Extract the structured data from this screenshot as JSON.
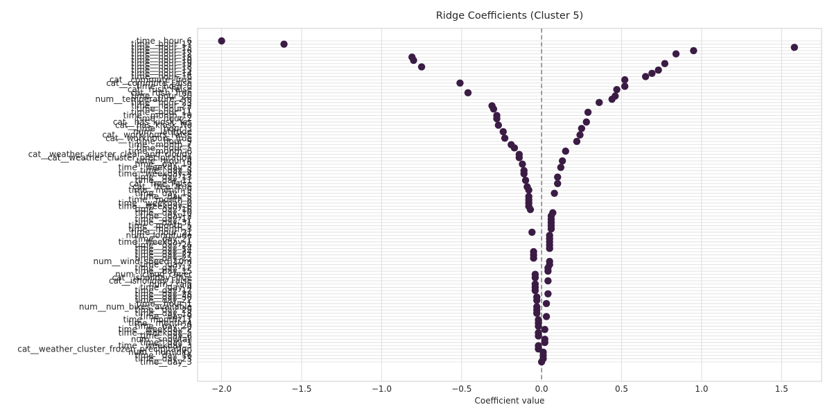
{
  "chart_data": {
    "type": "scatter",
    "title": "Ridge Coefficients (Cluster 5)",
    "xlabel": "Coefficient value",
    "ylabel": "",
    "xlim": [
      -2.15,
      1.75
    ],
    "xticks": [
      -2.0,
      -1.5,
      -1.0,
      -0.5,
      0.0,
      0.5,
      1.0,
      1.5
    ],
    "xtick_labels": [
      "−2.0",
      "−1.5",
      "−1.0",
      "−0.5",
      "0.0",
      "0.5",
      "1.0",
      "1.5"
    ],
    "reference_line_x": 0.0,
    "grid": true,
    "marker_color": "#3b1c44",
    "reference_color": "#808080",
    "points": [
      {
        "label": "time__hour_6",
        "value": -2.0
      },
      {
        "label": "time__hour_17",
        "value": -1.61
      },
      {
        "label": "time__hour_13",
        "value": 1.58
      },
      {
        "label": "time__hour_16",
        "value": 0.95
      },
      {
        "label": "time__hour_12",
        "value": 0.84
      },
      {
        "label": "time__hour_18",
        "value": -0.81
      },
      {
        "label": "time__hour_10",
        "value": -0.8
      },
      {
        "label": "time__hour_19",
        "value": 0.77
      },
      {
        "label": "time__hour_18",
        "value": -0.75
      },
      {
        "label": "time__hour_15",
        "value": 0.73
      },
      {
        "label": "time__hour_14",
        "value": 0.69
      },
      {
        "label": "time__hour_16",
        "value": 0.65
      },
      {
        "label": "cat__commute_True",
        "value": 0.52
      },
      {
        "label": "cat__commute_False",
        "value": -0.51
      },
      {
        "label": "time__hour_0",
        "value": 0.52
      },
      {
        "label": "cat__rush_False",
        "value": 0.47
      },
      {
        "label": "cat__rush_True",
        "value": -0.46
      },
      {
        "label": "time__hour_20",
        "value": 0.46
      },
      {
        "label": "num__temperature_2m",
        "value": 0.44
      },
      {
        "label": "time__hour_23",
        "value": 0.36
      },
      {
        "label": "time__hour_22",
        "value": -0.31
      },
      {
        "label": "time__hour_7",
        "value": -0.3
      },
      {
        "label": "time__hour_11",
        "value": 0.29
      },
      {
        "label": "time__month_10",
        "value": -0.28
      },
      {
        "label": "time__hour_2",
        "value": -0.28
      },
      {
        "label": "cat__has_kiosk_Yes",
        "value": 0.28
      },
      {
        "label": "cat__has_kiosk_No",
        "value": -0.27
      },
      {
        "label": "time__hour_3",
        "value": 0.25
      },
      {
        "label": "num__latitude",
        "value": -0.24
      },
      {
        "label": "cat__workhours_False",
        "value": 0.24
      },
      {
        "label": "cat__workhours_True",
        "value": -0.23
      },
      {
        "label": "time__hour_9",
        "value": 0.22
      },
      {
        "label": "time__month_7",
        "value": -0.19
      },
      {
        "label": "time__hour_5",
        "value": -0.17
      },
      {
        "label": "time__month_6",
        "value": 0.15
      },
      {
        "label": "cat__weather_cluster_clear_and_cloudy",
        "value": -0.14
      },
      {
        "label": "cat__weather_cluster_precipitation",
        "value": -0.14
      },
      {
        "label": "time__hour_4",
        "value": 0.13
      },
      {
        "label": "time__day_19",
        "value": -0.12
      },
      {
        "label": "time__weekday_3",
        "value": 0.12
      },
      {
        "label": "time__day_8",
        "value": -0.11
      },
      {
        "label": "time__weekday_4",
        "value": -0.11
      },
      {
        "label": "time__day_13",
        "value": 0.1
      },
      {
        "label": "time__day_11",
        "value": -0.1
      },
      {
        "label": "cat__free_False",
        "value": 0.1
      },
      {
        "label": "cat__free_True",
        "value": -0.09
      },
      {
        "label": "time__month_9",
        "value": -0.08
      },
      {
        "label": "time__day_15",
        "value": 0.08
      },
      {
        "label": "time__day_5",
        "value": -0.08
      },
      {
        "label": "time__month_8",
        "value": -0.08
      },
      {
        "label": "time__weekday_0",
        "value": -0.08
      },
      {
        "label": "time__weekday_6",
        "value": -0.08
      },
      {
        "label": "time__day_16",
        "value": -0.07
      },
      {
        "label": "time__day_10",
        "value": 0.07
      },
      {
        "label": "time__day_2",
        "value": 0.06
      },
      {
        "label": "time__day_17",
        "value": 0.06
      },
      {
        "label": "time__day_31",
        "value": 0.06
      },
      {
        "label": "time__month_5",
        "value": 0.06
      },
      {
        "label": "time__month_3",
        "value": 0.06
      },
      {
        "label": "time__hour_21",
        "value": -0.06
      },
      {
        "label": "num__longitude",
        "value": 0.05
      },
      {
        "label": "time__day_27",
        "value": 0.05
      },
      {
        "label": "time__weekday_1",
        "value": 0.05
      },
      {
        "label": "time__day_26",
        "value": 0.05
      },
      {
        "label": "time__day_14",
        "value": 0.05
      },
      {
        "label": "time__day_24",
        "value": -0.05
      },
      {
        "label": "time__day_21",
        "value": -0.05
      },
      {
        "label": "time__day_25",
        "value": -0.05
      },
      {
        "label": "num__wind_speed_10m",
        "value": 0.05
      },
      {
        "label": "time__day_7",
        "value": 0.05
      },
      {
        "label": "time__day_12",
        "value": 0.04
      },
      {
        "label": "time__day_15",
        "value": 0.04
      },
      {
        "label": "num__cloud_cover",
        "value": -0.04
      },
      {
        "label": "cat__isholiday_True",
        "value": -0.04
      },
      {
        "label": "cat__isholiday_False",
        "value": 0.04
      },
      {
        "label": "num__rain",
        "value": -0.04
      },
      {
        "label": "time__day_4",
        "value": -0.04
      },
      {
        "label": "time__day_17",
        "value": -0.04
      },
      {
        "label": "time__day_28",
        "value": 0.04
      },
      {
        "label": "time__day_30",
        "value": -0.03
      },
      {
        "label": "time__day_22",
        "value": -0.03
      },
      {
        "label": "time__hour_1",
        "value": 0.03
      },
      {
        "label": "num__num_bikes_available",
        "value": -0.03
      },
      {
        "label": "time__day_29",
        "value": -0.03
      },
      {
        "label": "time__day_18",
        "value": -0.03
      },
      {
        "label": "time__day_9",
        "value": 0.03
      },
      {
        "label": "time__month_11",
        "value": -0.02
      },
      {
        "label": "time__month_4",
        "value": -0.02
      },
      {
        "label": "time__day_20",
        "value": -0.02
      },
      {
        "label": "time__weekday_2",
        "value": 0.02
      },
      {
        "label": "time__weekday_5",
        "value": -0.02
      },
      {
        "label": "time__day_6",
        "value": -0.02
      },
      {
        "label": "num__snowfall",
        "value": 0.02
      },
      {
        "label": "time__day_1",
        "value": 0.02
      },
      {
        "label": "time__weekday_3",
        "value": -0.02
      },
      {
        "label": "cat__weather_cluster_frozen_precipitation",
        "value": -0.02
      },
      {
        "label": "num__humidity",
        "value": 0.01
      },
      {
        "label": "time__day_16",
        "value": 0.01
      },
      {
        "label": "time__day_23",
        "value": 0.01
      },
      {
        "label": "time__day_3",
        "value": 0.0
      }
    ]
  }
}
